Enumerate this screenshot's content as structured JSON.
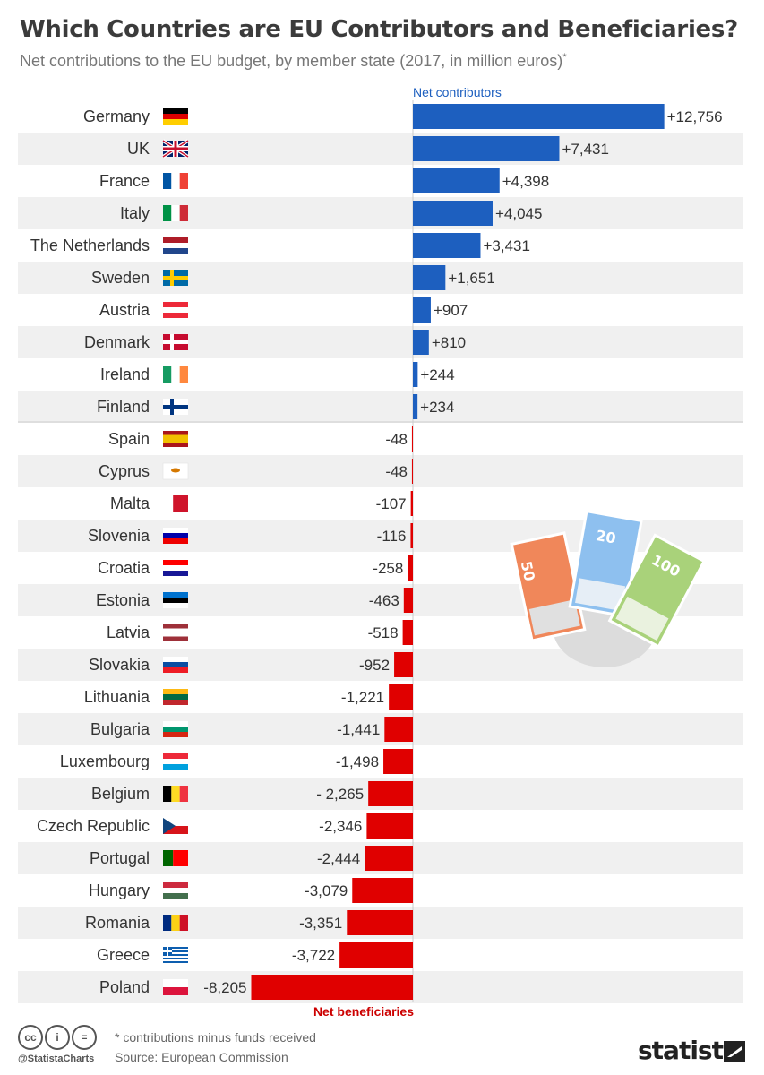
{
  "title": "Which Countries are EU Contributors and Beneficiaries?",
  "subtitle": "Net contributions to the EU budget, by member state (2017, in million euros)",
  "subtitle_mark": "*",
  "section_labels": {
    "positive": "Net contributors",
    "negative": "Net beneficiaries"
  },
  "colors": {
    "positive": "#1d5fbf",
    "negative": "#e00000",
    "stripe": "#f0f0f0"
  },
  "chart_data": {
    "type": "bar",
    "orientation": "horizontal",
    "title": "Which Countries are EU Contributors and Beneficiaries?",
    "subtitle": "Net contributions to the EU budget, by member state (2017, in million euros)",
    "categories": [
      "Germany",
      "UK",
      "France",
      "Italy",
      "The Netherlands",
      "Sweden",
      "Austria",
      "Denmark",
      "Ireland",
      "Finland",
      "Spain",
      "Cyprus",
      "Malta",
      "Slovenia",
      "Croatia",
      "Estonia",
      "Latvia",
      "Slovakia",
      "Lithuania",
      "Bulgaria",
      "Luxembourg",
      "Belgium",
      "Czech Republic",
      "Portugal",
      "Hungary",
      "Romania",
      "Greece",
      "Poland"
    ],
    "values": [
      12756,
      7431,
      4398,
      4045,
      3431,
      1651,
      907,
      810,
      244,
      234,
      -48,
      -48,
      -107,
      -116,
      -258,
      -463,
      -518,
      -952,
      -1221,
      -1441,
      -1498,
      -2265,
      -2346,
      -2444,
      -3079,
      -3351,
      -3722,
      -8205
    ],
    "value_labels": [
      "+12,756",
      "+7,431",
      "+4,398",
      "+4,045",
      "+3,431",
      "+1,651",
      "+907",
      "+810",
      "+244",
      "+234",
      "-48",
      "-48",
      "-107",
      "-116",
      "-258",
      "-463",
      "-518",
      "-952",
      "-1,221",
      "-1,441",
      "-1,498",
      "- 2,265",
      "-2,346",
      "-2,444",
      "-3,079",
      "-3,351",
      "-3,722",
      "-8,205"
    ]
  },
  "flags": [
    {
      "type": "h",
      "colors": [
        "#000000",
        "#dd0000",
        "#ffce00"
      ]
    },
    {
      "type": "uk"
    },
    {
      "type": "v",
      "colors": [
        "#0055a4",
        "#ffffff",
        "#ef4135"
      ]
    },
    {
      "type": "v",
      "colors": [
        "#009246",
        "#ffffff",
        "#ce2b37"
      ]
    },
    {
      "type": "h",
      "colors": [
        "#ae1c28",
        "#ffffff",
        "#21468b"
      ]
    },
    {
      "type": "nordic",
      "colors": [
        "#006aa7",
        "#fecc00"
      ]
    },
    {
      "type": "h",
      "colors": [
        "#ed2939",
        "#ffffff",
        "#ed2939"
      ]
    },
    {
      "type": "nordic",
      "colors": [
        "#c60c30",
        "#ffffff"
      ]
    },
    {
      "type": "v",
      "colors": [
        "#169b62",
        "#ffffff",
        "#ff883e"
      ]
    },
    {
      "type": "nordic",
      "colors": [
        "#ffffff",
        "#003580"
      ]
    },
    {
      "type": "h3",
      "colors": [
        "#aa151b",
        "#f1bf00",
        "#aa151b"
      ]
    },
    {
      "type": "dot",
      "colors": [
        "#ffffff",
        "#d57800"
      ]
    },
    {
      "type": "v2",
      "colors": [
        "#ffffff",
        "#cf142b"
      ]
    },
    {
      "type": "h",
      "colors": [
        "#ffffff",
        "#0000aa",
        "#ee0000"
      ]
    },
    {
      "type": "h",
      "colors": [
        "#ff0000",
        "#ffffff",
        "#171796"
      ]
    },
    {
      "type": "h",
      "colors": [
        "#0072ce",
        "#000000",
        "#ffffff"
      ]
    },
    {
      "type": "h3",
      "colors": [
        "#9e3039",
        "#ffffff",
        "#9e3039"
      ]
    },
    {
      "type": "h",
      "colors": [
        "#ffffff",
        "#0b4ea2",
        "#ee1c25"
      ]
    },
    {
      "type": "h",
      "colors": [
        "#fdb913",
        "#006a44",
        "#c1272d"
      ]
    },
    {
      "type": "h",
      "colors": [
        "#ffffff",
        "#00966e",
        "#d62612"
      ]
    },
    {
      "type": "h",
      "colors": [
        "#ed2939",
        "#ffffff",
        "#00a1de"
      ]
    },
    {
      "type": "v",
      "colors": [
        "#000000",
        "#fdda24",
        "#ef3340"
      ]
    },
    {
      "type": "cz"
    },
    {
      "type": "v2",
      "colors": [
        "#006600",
        "#ff0000"
      ]
    },
    {
      "type": "h",
      "colors": [
        "#cd2a3e",
        "#ffffff",
        "#436f4d"
      ]
    },
    {
      "type": "v",
      "colors": [
        "#002b7f",
        "#fcd116",
        "#ce1126"
      ]
    },
    {
      "type": "gr"
    },
    {
      "type": "h2",
      "colors": [
        "#ffffff",
        "#dc143c"
      ]
    }
  ],
  "footer": {
    "license_icons": [
      "cc",
      "by",
      "eq"
    ],
    "license_icon_text": [
      "cc",
      "i",
      "="
    ],
    "handle": "@StatistaCharts",
    "note": "* contributions minus funds received",
    "source": "Source: European Commission",
    "brand": "statista"
  }
}
